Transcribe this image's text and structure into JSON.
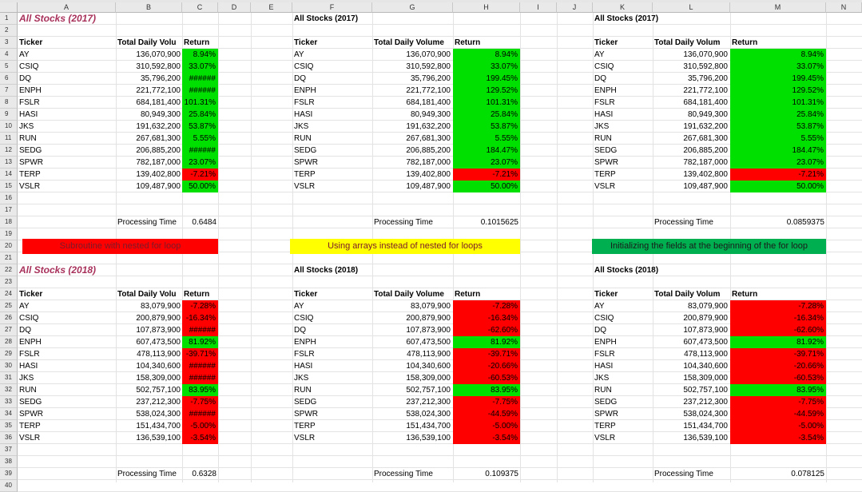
{
  "columns": [
    "A",
    "B",
    "C",
    "D",
    "E",
    "F",
    "G",
    "H",
    "I",
    "J",
    "K",
    "L",
    "M",
    "N"
  ],
  "rows": [
    "1",
    "2",
    "3",
    "4",
    "5",
    "6",
    "7",
    "8",
    "9",
    "10",
    "11",
    "12",
    "13",
    "14",
    "15",
    "16",
    "17",
    "18",
    "19",
    "20",
    "21",
    "22",
    "23",
    "24",
    "25",
    "26",
    "27",
    "28",
    "29",
    "30",
    "31",
    "32",
    "33",
    "34",
    "35",
    "36",
    "37",
    "38",
    "39",
    "40"
  ],
  "colors": {
    "green": "#00e000",
    "red": "#ff0000",
    "yellow": "#ffff00",
    "dark_green": "#00b050",
    "title": "#a8315b"
  },
  "banners": {
    "left": "Subroutine with nested for loop",
    "middle": "Using arrays instead of nested for loops",
    "right": "Initializing the fields at the beginning of the for loop"
  },
  "blocks2017": {
    "left": {
      "title": "All Stocks (2017)",
      "ticker_header": "Ticker",
      "volume_header": "Total Daily Volu",
      "return_header": "Return",
      "processing_label": "Processing Time",
      "processing_time": "0.6484",
      "rows": [
        {
          "ticker": "AY",
          "volume": "136,070,900",
          "return": "8.94%",
          "color": "green"
        },
        {
          "ticker": "CSIQ",
          "volume": "310,592,800",
          "return": "33.07%",
          "color": "green"
        },
        {
          "ticker": "DQ",
          "volume": "35,796,200",
          "return": "######",
          "color": "green"
        },
        {
          "ticker": "ENPH",
          "volume": "221,772,100",
          "return": "######",
          "color": "green"
        },
        {
          "ticker": "FSLR",
          "volume": "684,181,400",
          "return": "101.31%",
          "color": "green"
        },
        {
          "ticker": "HASI",
          "volume": "80,949,300",
          "return": "25.84%",
          "color": "green"
        },
        {
          "ticker": "JKS",
          "volume": "191,632,200",
          "return": "53.87%",
          "color": "green"
        },
        {
          "ticker": "RUN",
          "volume": "267,681,300",
          "return": "5.55%",
          "color": "green"
        },
        {
          "ticker": "SEDG",
          "volume": "206,885,200",
          "return": "######",
          "color": "green"
        },
        {
          "ticker": "SPWR",
          "volume": "782,187,000",
          "return": "23.07%",
          "color": "green"
        },
        {
          "ticker": "TERP",
          "volume": "139,402,800",
          "return": "-7.21%",
          "color": "red"
        },
        {
          "ticker": "VSLR",
          "volume": "109,487,900",
          "return": "50.00%",
          "color": "green"
        }
      ]
    },
    "middle": {
      "title": "All Stocks (2017)",
      "ticker_header": "Ticker",
      "volume_header": "Total Daily Volume",
      "return_header": "Return",
      "processing_label": "Processing Time",
      "processing_time": "0.1015625",
      "rows": [
        {
          "ticker": "AY",
          "volume": "136,070,900",
          "return": "8.94%",
          "color": "green"
        },
        {
          "ticker": "CSIQ",
          "volume": "310,592,800",
          "return": "33.07%",
          "color": "green"
        },
        {
          "ticker": "DQ",
          "volume": "35,796,200",
          "return": "199.45%",
          "color": "green"
        },
        {
          "ticker": "ENPH",
          "volume": "221,772,100",
          "return": "129.52%",
          "color": "green"
        },
        {
          "ticker": "FSLR",
          "volume": "684,181,400",
          "return": "101.31%",
          "color": "green"
        },
        {
          "ticker": "HASI",
          "volume": "80,949,300",
          "return": "25.84%",
          "color": "green"
        },
        {
          "ticker": "JKS",
          "volume": "191,632,200",
          "return": "53.87%",
          "color": "green"
        },
        {
          "ticker": "RUN",
          "volume": "267,681,300",
          "return": "5.55%",
          "color": "green"
        },
        {
          "ticker": "SEDG",
          "volume": "206,885,200",
          "return": "184.47%",
          "color": "green"
        },
        {
          "ticker": "SPWR",
          "volume": "782,187,000",
          "return": "23.07%",
          "color": "green"
        },
        {
          "ticker": "TERP",
          "volume": "139,402,800",
          "return": "-7.21%",
          "color": "red"
        },
        {
          "ticker": "VSLR",
          "volume": "109,487,900",
          "return": "50.00%",
          "color": "green"
        }
      ]
    },
    "right": {
      "title": "All Stocks (2017)",
      "ticker_header": "Ticker",
      "volume_header": "Total Daily Volum",
      "return_header": "Return",
      "processing_label": "Processing Time",
      "processing_time": "0.0859375",
      "rows": [
        {
          "ticker": "AY",
          "volume": "136,070,900",
          "return": "8.94%",
          "color": "green"
        },
        {
          "ticker": "CSIQ",
          "volume": "310,592,800",
          "return": "33.07%",
          "color": "green"
        },
        {
          "ticker": "DQ",
          "volume": "35,796,200",
          "return": "199.45%",
          "color": "green"
        },
        {
          "ticker": "ENPH",
          "volume": "221,772,100",
          "return": "129.52%",
          "color": "green"
        },
        {
          "ticker": "FSLR",
          "volume": "684,181,400",
          "return": "101.31%",
          "color": "green"
        },
        {
          "ticker": "HASI",
          "volume": "80,949,300",
          "return": "25.84%",
          "color": "green"
        },
        {
          "ticker": "JKS",
          "volume": "191,632,200",
          "return": "53.87%",
          "color": "green"
        },
        {
          "ticker": "RUN",
          "volume": "267,681,300",
          "return": "5.55%",
          "color": "green"
        },
        {
          "ticker": "SEDG",
          "volume": "206,885,200",
          "return": "184.47%",
          "color": "green"
        },
        {
          "ticker": "SPWR",
          "volume": "782,187,000",
          "return": "23.07%",
          "color": "green"
        },
        {
          "ticker": "TERP",
          "volume": "139,402,800",
          "return": "-7.21%",
          "color": "red"
        },
        {
          "ticker": "VSLR",
          "volume": "109,487,900",
          "return": "50.00%",
          "color": "green"
        }
      ]
    }
  },
  "blocks2018": {
    "left": {
      "title": "All Stocks (2018)",
      "ticker_header": "Ticker",
      "volume_header": "Total Daily Volu",
      "return_header": "Return",
      "processing_label": "Processing Time",
      "processing_time": "0.6328",
      "rows": [
        {
          "ticker": "AY",
          "volume": "83,079,900",
          "return": "-7.28%",
          "color": "red"
        },
        {
          "ticker": "CSIQ",
          "volume": "200,879,900",
          "return": "-16.34%",
          "color": "red"
        },
        {
          "ticker": "DQ",
          "volume": "107,873,900",
          "return": "######",
          "color": "red"
        },
        {
          "ticker": "ENPH",
          "volume": "607,473,500",
          "return": "81.92%",
          "color": "green"
        },
        {
          "ticker": "FSLR",
          "volume": "478,113,900",
          "return": "-39.71%",
          "color": "red"
        },
        {
          "ticker": "HASI",
          "volume": "104,340,600",
          "return": "######",
          "color": "red"
        },
        {
          "ticker": "JKS",
          "volume": "158,309,000",
          "return": "######",
          "color": "red"
        },
        {
          "ticker": "RUN",
          "volume": "502,757,100",
          "return": "83.95%",
          "color": "green"
        },
        {
          "ticker": "SEDG",
          "volume": "237,212,300",
          "return": "-7.75%",
          "color": "red"
        },
        {
          "ticker": "SPWR",
          "volume": "538,024,300",
          "return": "######",
          "color": "red"
        },
        {
          "ticker": "TERP",
          "volume": "151,434,700",
          "return": "-5.00%",
          "color": "red"
        },
        {
          "ticker": "VSLR",
          "volume": "136,539,100",
          "return": "-3.54%",
          "color": "red"
        }
      ]
    },
    "middle": {
      "title": "All Stocks (2018)",
      "ticker_header": "Ticker",
      "volume_header": "Total Daily Volume",
      "return_header": "Return",
      "processing_label": "Processing Time",
      "processing_time": "0.109375",
      "rows": [
        {
          "ticker": "AY",
          "volume": "83,079,900",
          "return": "-7.28%",
          "color": "red"
        },
        {
          "ticker": "CSIQ",
          "volume": "200,879,900",
          "return": "-16.34%",
          "color": "red"
        },
        {
          "ticker": "DQ",
          "volume": "107,873,900",
          "return": "-62.60%",
          "color": "red"
        },
        {
          "ticker": "ENPH",
          "volume": "607,473,500",
          "return": "81.92%",
          "color": "green"
        },
        {
          "ticker": "FSLR",
          "volume": "478,113,900",
          "return": "-39.71%",
          "color": "red"
        },
        {
          "ticker": "HASI",
          "volume": "104,340,600",
          "return": "-20.66%",
          "color": "red"
        },
        {
          "ticker": "JKS",
          "volume": "158,309,000",
          "return": "-60.53%",
          "color": "red"
        },
        {
          "ticker": "RUN",
          "volume": "502,757,100",
          "return": "83.95%",
          "color": "green"
        },
        {
          "ticker": "SEDG",
          "volume": "237,212,300",
          "return": "-7.75%",
          "color": "red"
        },
        {
          "ticker": "SPWR",
          "volume": "538,024,300",
          "return": "-44.59%",
          "color": "red"
        },
        {
          "ticker": "TERP",
          "volume": "151,434,700",
          "return": "-5.00%",
          "color": "red"
        },
        {
          "ticker": "VSLR",
          "volume": "136,539,100",
          "return": "-3.54%",
          "color": "red"
        }
      ]
    },
    "right": {
      "title": "All Stocks (2018)",
      "ticker_header": "Ticker",
      "volume_header": "Total Daily Volum",
      "return_header": "Return",
      "processing_label": "Processing Time",
      "processing_time": "0.078125",
      "rows": [
        {
          "ticker": "AY",
          "volume": "83,079,900",
          "return": "-7.28%",
          "color": "red"
        },
        {
          "ticker": "CSIQ",
          "volume": "200,879,900",
          "return": "-16.34%",
          "color": "red"
        },
        {
          "ticker": "DQ",
          "volume": "107,873,900",
          "return": "-62.60%",
          "color": "red"
        },
        {
          "ticker": "ENPH",
          "volume": "607,473,500",
          "return": "81.92%",
          "color": "green"
        },
        {
          "ticker": "FSLR",
          "volume": "478,113,900",
          "return": "-39.71%",
          "color": "red"
        },
        {
          "ticker": "HASI",
          "volume": "104,340,600",
          "return": "-20.66%",
          "color": "red"
        },
        {
          "ticker": "JKS",
          "volume": "158,309,000",
          "return": "-60.53%",
          "color": "red"
        },
        {
          "ticker": "RUN",
          "volume": "502,757,100",
          "return": "83.95%",
          "color": "green"
        },
        {
          "ticker": "SEDG",
          "volume": "237,212,300",
          "return": "-7.75%",
          "color": "red"
        },
        {
          "ticker": "SPWR",
          "volume": "538,024,300",
          "return": "-44.59%",
          "color": "red"
        },
        {
          "ticker": "TERP",
          "volume": "151,434,700",
          "return": "-5.00%",
          "color": "red"
        },
        {
          "ticker": "VSLR",
          "volume": "136,539,100",
          "return": "-3.54%",
          "color": "red"
        }
      ]
    }
  }
}
